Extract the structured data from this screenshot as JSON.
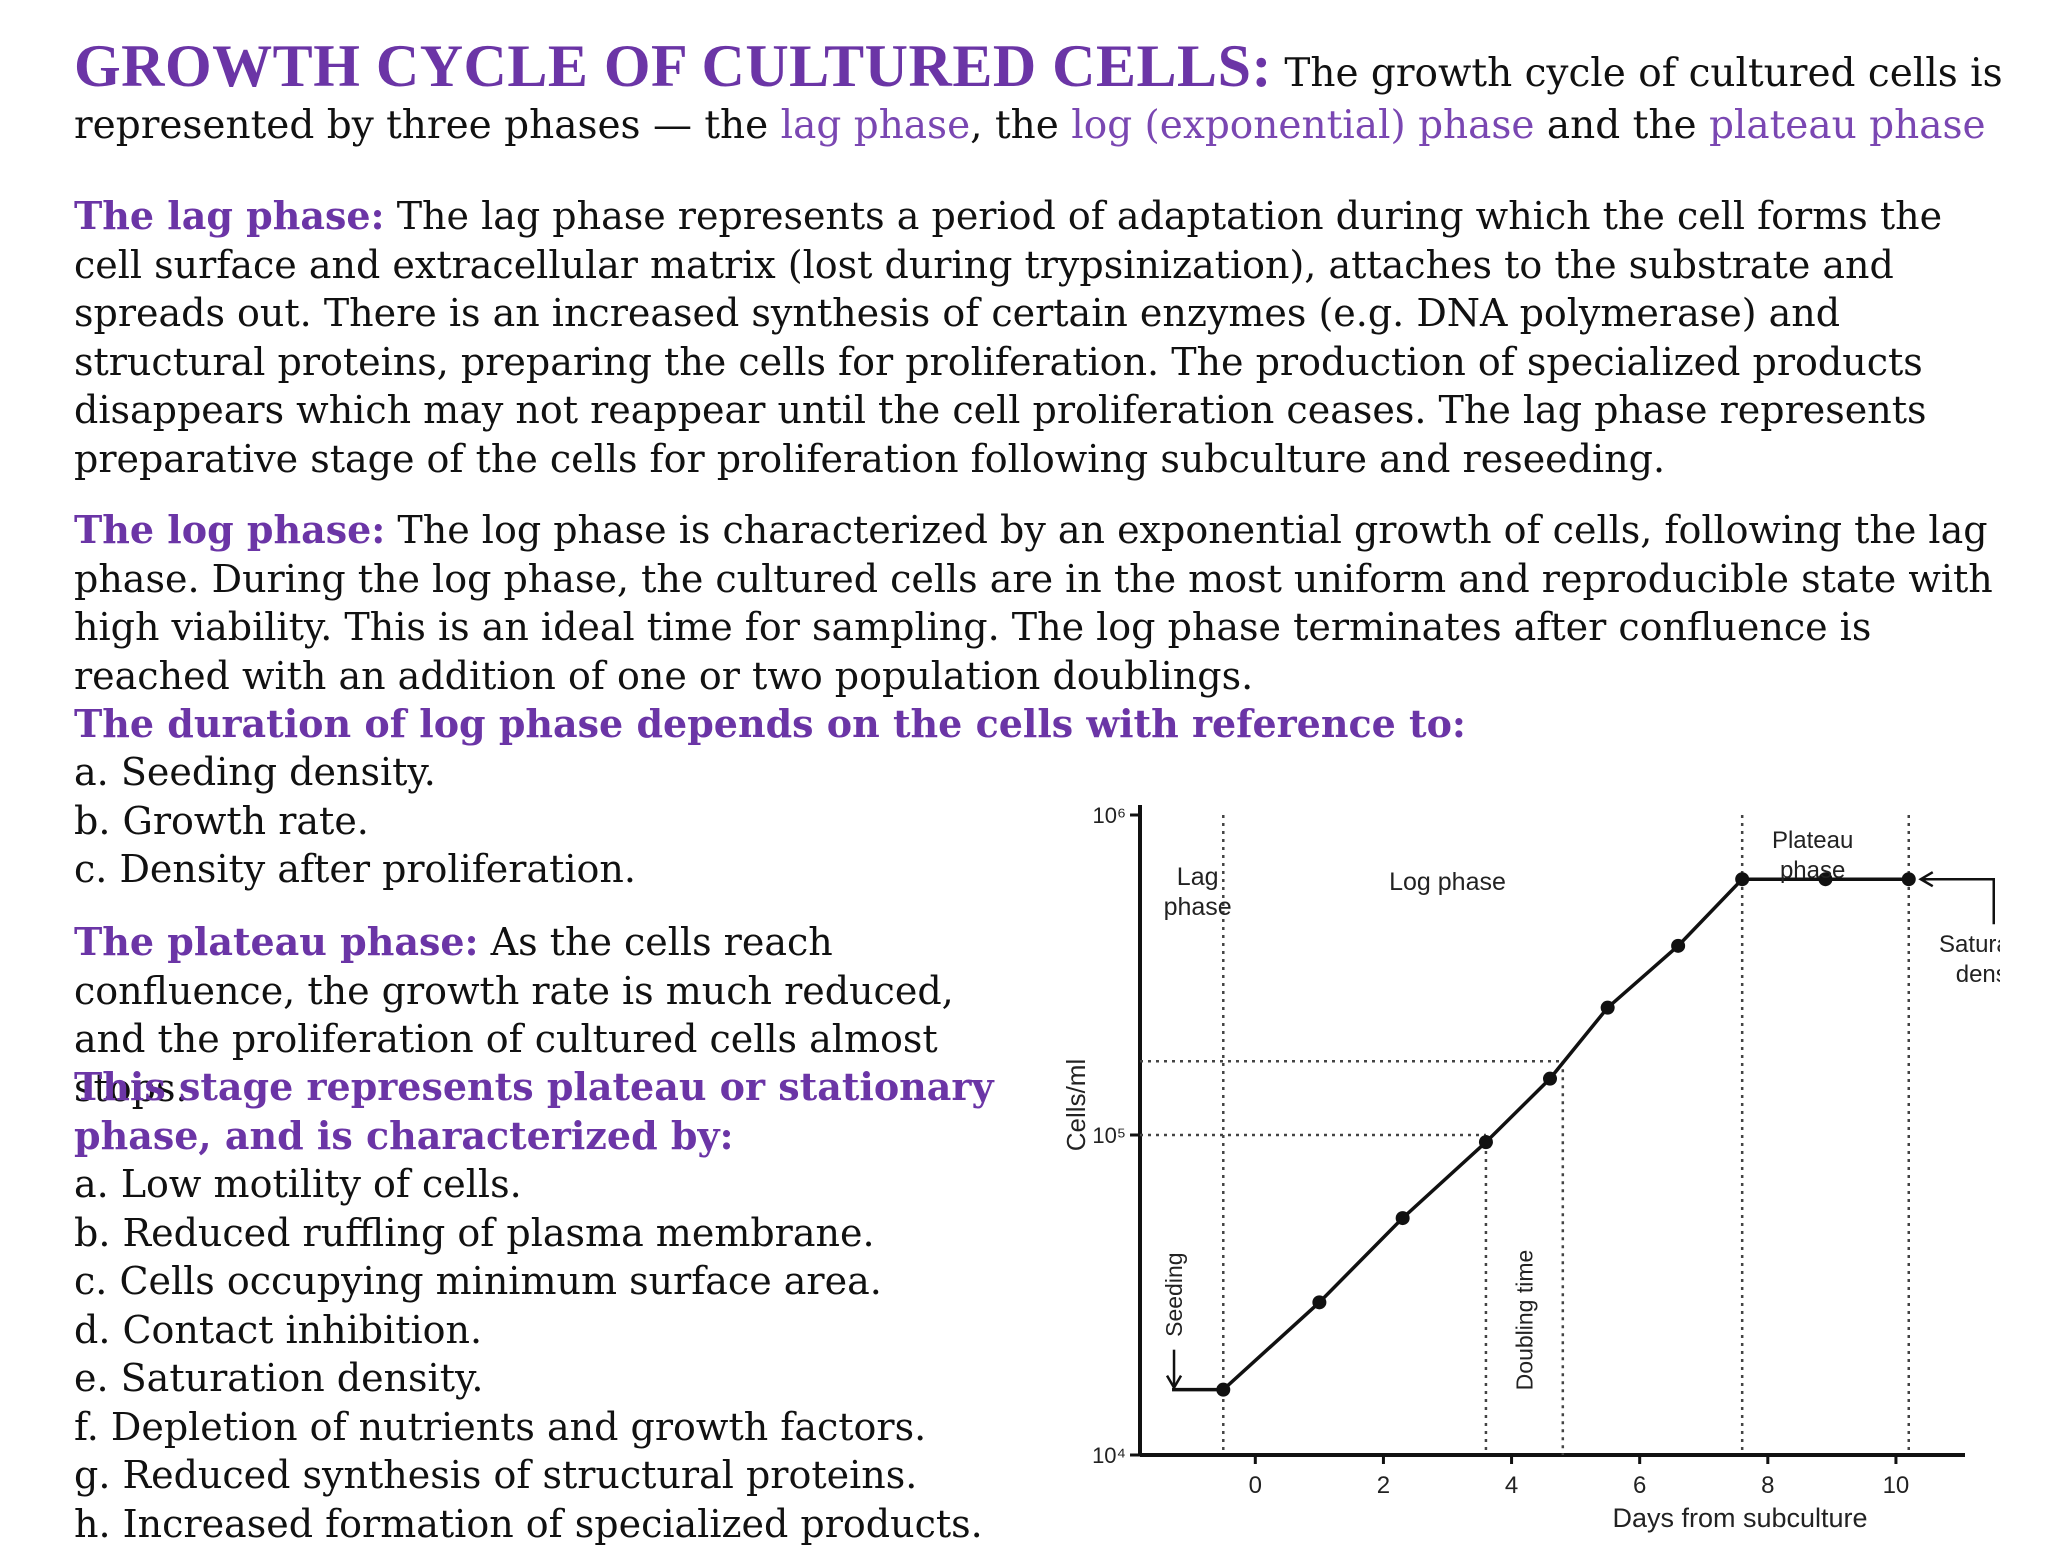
{
  "title": {
    "heading": "GROWTH CYCLE OF CULTURED CELLS:",
    "intro_1": "The growth cycle of cultured cells is represented by three phases — the",
    "lag_term": "lag phase",
    "sep_1": ", the",
    "log_term": "log (exponential) phase",
    "sep_2": "and the",
    "plateau_term": "plateau phase"
  },
  "lag_section": {
    "lead": "The lag phase:",
    "text": "The lag phase represents a period of adaptation during which the cell forms the cell surface and extracellular matrix (lost during trypsinization), attaches to the substrate and spreads out. There is an increased synthesis of certain enzymes (e.g. DNA polymerase) and structural proteins, preparing the cells for proliferation. The production of specialized products disappears which may not reappear until the cell proliferation ceases. The lag phase represents preparative stage of the cells for proliferation following subculture and reseeding."
  },
  "log_section": {
    "lead": "The log phase:",
    "text": "The log phase is characterized by an exponential growth of cells, following the lag phase. During the log phase, the cultured cells are in the most uniform and reproducible state with high viability. This is an ideal time for sampling. The log phase terminates after confluence is reached with an addition of one or two population doublings.",
    "duration_heading": "The duration of log phase depends on the cells with reference to:",
    "duration_items": [
      "a. Seeding density.",
      "b. Growth rate.",
      "c. Density after proliferation."
    ]
  },
  "plateau_section": {
    "lead": "The plateau phase:",
    "text": "As the cells reach confluence, the growth rate is much reduced, and the proliferation of cultured cells almost stops.",
    "characterized_heading": "This stage represents plateau or stationary phase, and is characterized by:",
    "items": [
      "a. Low motility of cells.",
      "b. Reduced ruffling of plasma membrane.",
      "c. Cells occupying minimum surface area.",
      "d. Contact inhibition.",
      "e. Saturation density.",
      "f. Depletion of nutrients and growth factors.",
      "g. Reduced synthesis of structural proteins.",
      "h. Increased formation of specialized products."
    ]
  },
  "chart_data": {
    "type": "line",
    "xlabel": "Days from subculture",
    "ylabel": "Cells/ml",
    "x_scale": "linear",
    "y_scale": "log",
    "xlim": [
      -1.8,
      11
    ],
    "ylim": [
      10000,
      1000000
    ],
    "x_ticks": [
      0,
      2,
      4,
      6,
      8,
      10
    ],
    "x_tick_labels": [
      "0",
      "2",
      "4",
      "6",
      "8",
      "10"
    ],
    "y_ticks": [
      10000,
      100000,
      1000000
    ],
    "y_tick_labels": [
      "10⁴",
      "10⁵",
      "10⁶"
    ],
    "series": [
      {
        "x": [
          -1.3,
          -0.5,
          1.0,
          2.3,
          3.6,
          4.6,
          5.5,
          6.6,
          7.6,
          8.9,
          10.2
        ],
        "y": [
          16000,
          16000,
          30000,
          55000,
          95000,
          150000,
          250000,
          390000,
          630000,
          630000,
          630000
        ],
        "markers": [
          false,
          true,
          true,
          true,
          true,
          true,
          true,
          true,
          true,
          true,
          true
        ]
      }
    ],
    "phase_labels": [
      {
        "text": "Lag\nphase",
        "x": -0.9
      },
      {
        "text": "Log phase",
        "x": 3.0
      },
      {
        "text": "Plateau\nphase",
        "x": 8.7
      }
    ],
    "phase_boundaries_x": [
      -0.5,
      7.6,
      10.2
    ],
    "doubling_time": {
      "label": "Doubling time",
      "x_from": 3.6,
      "x_to": 4.8,
      "y_low": 100000,
      "y_high": 170000
    },
    "annotations": [
      "Seeding",
      "Saturation\ndensity"
    ],
    "grid": false
  },
  "colors": {
    "accent_purple": "#6b35a6",
    "highlight_purple": "#7a47b2"
  }
}
